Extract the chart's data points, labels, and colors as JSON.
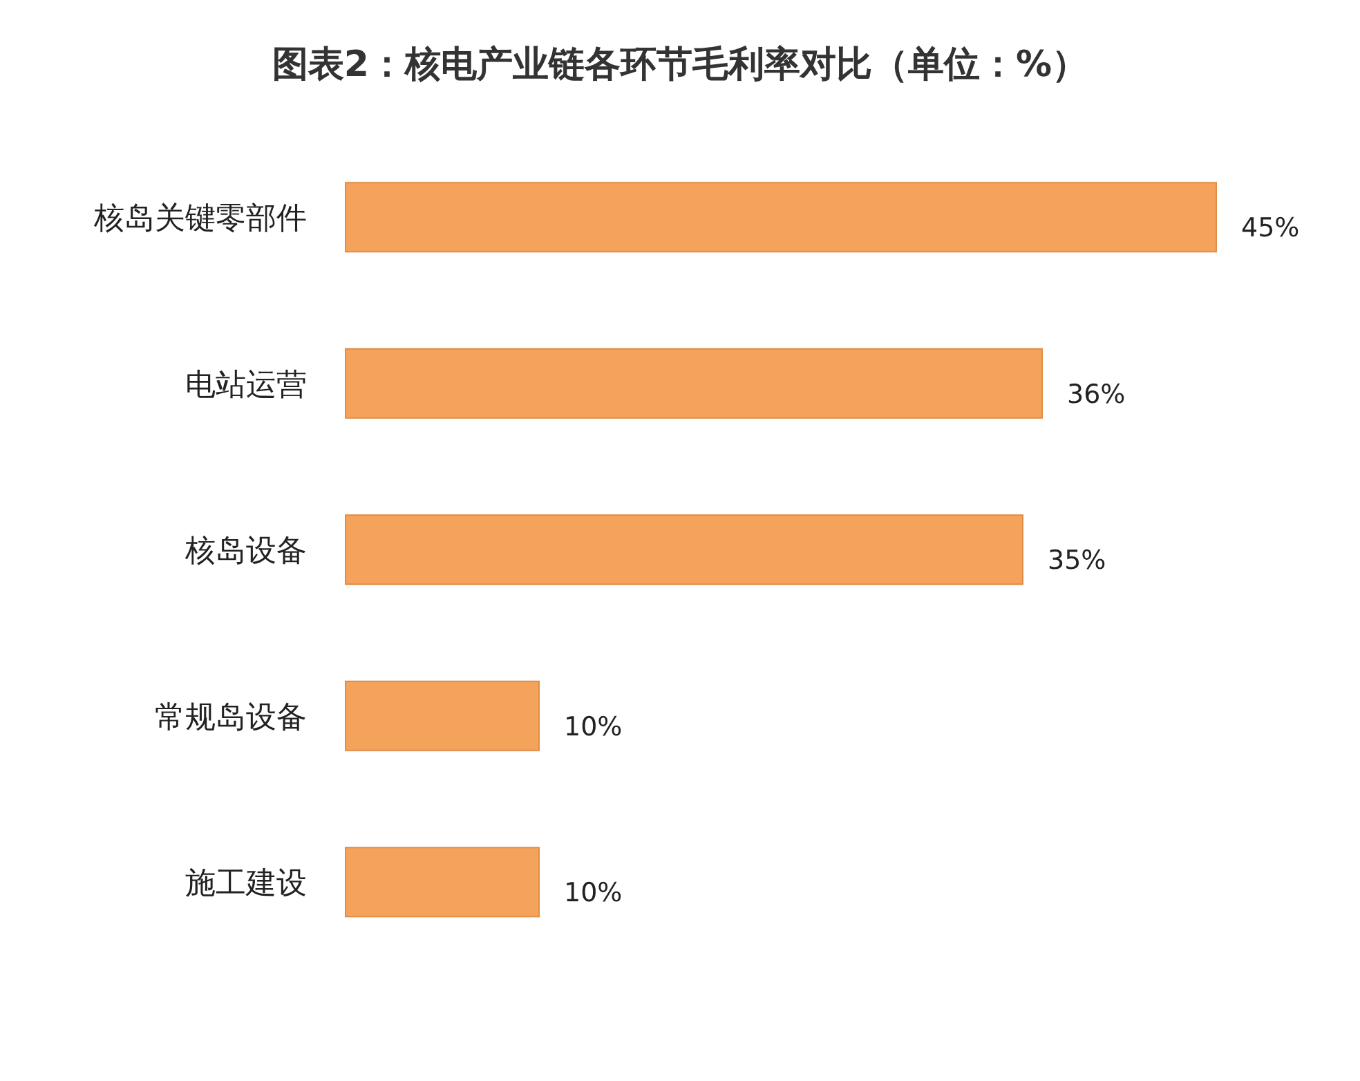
{
  "chart_data": {
    "type": "bar",
    "orientation": "horizontal",
    "title": "图表2：核电产业链各环节毛利率对比（单位：%）",
    "categories": [
      "核岛关键零部件",
      "电站运营",
      "核岛设备",
      "常规岛设备",
      "施工建设"
    ],
    "values": [
      45,
      36,
      35,
      10,
      10
    ],
    "value_labels": [
      "45%",
      "36%",
      "35%",
      "10%",
      "10%"
    ],
    "color": "#f5a25a"
  }
}
